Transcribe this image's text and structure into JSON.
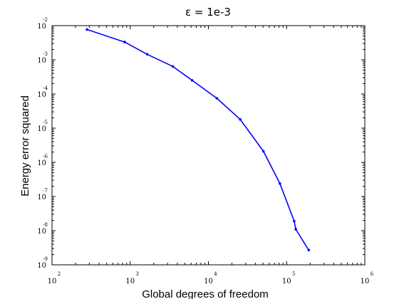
{
  "chart_data": {
    "type": "line",
    "title": "ε = 1e-3",
    "xlabel": "Global degrees of freedom",
    "ylabel": "Energy error squared",
    "xscale": "log",
    "yscale": "log",
    "xlim": [
      100,
      1000000
    ],
    "ylim": [
      1e-09,
      0.01
    ],
    "grid": false,
    "legend": "none",
    "line_color": "#0000ff",
    "x_ticks": [
      {
        "base": "10",
        "exp": "2",
        "value": 100
      },
      {
        "base": "10",
        "exp": "3",
        "value": 1000
      },
      {
        "base": "10",
        "exp": "4",
        "value": 10000
      },
      {
        "base": "10",
        "exp": "5",
        "value": 100000
      },
      {
        "base": "10",
        "exp": "6",
        "value": 1000000
      }
    ],
    "y_ticks": [
      {
        "base": "10",
        "exp": "-2",
        "value": 0.01
      },
      {
        "base": "10",
        "exp": "-3",
        "value": 0.001
      },
      {
        "base": "10",
        "exp": "-4",
        "value": 0.0001
      },
      {
        "base": "10",
        "exp": "-5",
        "value": 1e-05
      },
      {
        "base": "10",
        "exp": "-6",
        "value": 1e-06
      },
      {
        "base": "10",
        "exp": "-7",
        "value": 1e-07
      },
      {
        "base": "10",
        "exp": "-8",
        "value": 1e-08
      },
      {
        "base": "10",
        "exp": "-9",
        "value": 1e-09
      }
    ],
    "series": [
      {
        "x": [
          280,
          850,
          1650,
          3500,
          6200,
          12800,
          25500,
          50500,
          82000,
          125000,
          131000,
          192000
        ],
        "y": [
          0.0077,
          0.0033,
          0.00145,
          0.00064,
          0.00025,
          7.5e-05,
          1.8e-05,
          2.1e-06,
          2.4e-07,
          1.9e-08,
          1.1e-08,
          2.7e-09
        ]
      }
    ]
  }
}
